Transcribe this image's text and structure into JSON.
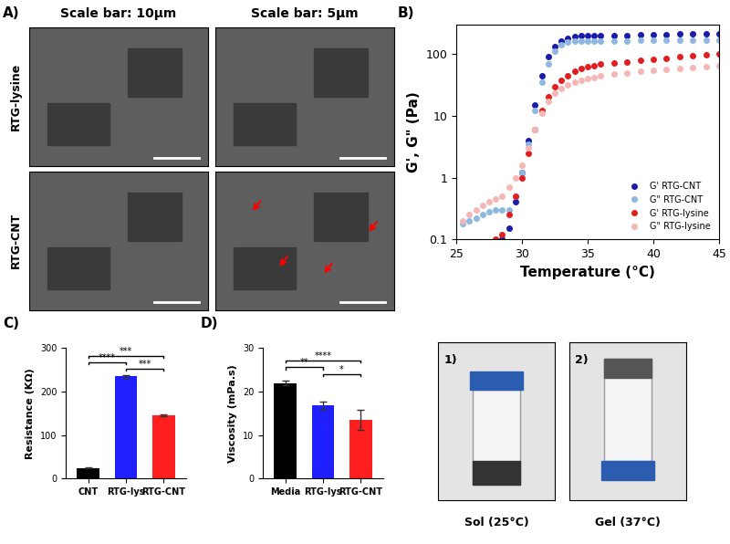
{
  "panel_a": {
    "label": "A)",
    "columns": [
      "Scale bar: 10µm",
      "Scale bar: 5µm"
    ],
    "rows": [
      "RTG-lysine",
      "RTG-CNT"
    ]
  },
  "chart_data": [
    {
      "panel_label": "B)",
      "type": "line",
      "xlabel": "Temperature (°C)",
      "ylabel": "G', G\" (Pa)",
      "log": "y",
      "xlim": [
        25,
        45
      ],
      "xticks": [
        25,
        30,
        35,
        40,
        45
      ],
      "ylim": [
        0.1,
        300
      ],
      "yticks": [
        0.1,
        1,
        10,
        100
      ],
      "legend": "lower right",
      "marker": "circle",
      "line_style": "none",
      "x": [
        25.5,
        26,
        26.5,
        27,
        27.5,
        28,
        28.5,
        29,
        29.5,
        30,
        30.5,
        31,
        31.5,
        32,
        32.5,
        33,
        33.5,
        34,
        34.5,
        35,
        35.5,
        36,
        37,
        38,
        39,
        40,
        41,
        42,
        43,
        44,
        45
      ],
      "series": [
        {
          "name": "G' RTG-CNT",
          "color": "#1c1ca8",
          "values": [
            null,
            null,
            null,
            null,
            null,
            null,
            0.1,
            0.15,
            0.4,
            1.2,
            4,
            15,
            45,
            90,
            130,
            160,
            180,
            190,
            195,
            200,
            200,
            200,
            200,
            200,
            205,
            205,
            205,
            210,
            210,
            210,
            210
          ]
        },
        {
          "name": "G\" RTG-CNT",
          "color": "#8fb8e0",
          "values": [
            0.18,
            0.2,
            0.22,
            0.25,
            0.28,
            0.3,
            0.3,
            0.3,
            0.5,
            1.2,
            3.5,
            12,
            35,
            70,
            110,
            140,
            155,
            160,
            160,
            160,
            160,
            160,
            160,
            160,
            165,
            165,
            165,
            165,
            170,
            170,
            170
          ]
        },
        {
          "name": "G' RTG-lysine",
          "color": "#e02020",
          "values": [
            null,
            null,
            null,
            null,
            null,
            0.1,
            0.12,
            0.25,
            0.5,
            1,
            2.5,
            6,
            12,
            20,
            30,
            38,
            45,
            52,
            58,
            62,
            65,
            68,
            72,
            75,
            78,
            82,
            86,
            90,
            93,
            97,
            100
          ]
        },
        {
          "name": "G\" RTG-lysine",
          "color": "#f4b6b6",
          "values": [
            0.2,
            0.25,
            0.3,
            0.35,
            0.4,
            0.45,
            0.5,
            0.7,
            1,
            1.6,
            3,
            6,
            11,
            17,
            23,
            28,
            32,
            35,
            38,
            40,
            42,
            44,
            47,
            50,
            52,
            55,
            57,
            59,
            61,
            63,
            65
          ]
        }
      ]
    },
    {
      "panel_label": "C)",
      "type": "bar",
      "ylabel": "Resistance (KΩ)",
      "categories": [
        "CNT",
        "RTG-lys",
        "RTG-CNT"
      ],
      "values": [
        25,
        235,
        145
      ],
      "errors": [
        1,
        3,
        2
      ],
      "colors": [
        "#000000",
        "#1f1fff",
        "#ff1f1f"
      ],
      "ylim": [
        0,
        300
      ],
      "yticks": [
        0,
        100,
        200,
        300
      ],
      "significance": [
        {
          "from": "RTG-lys",
          "to": "RTG-CNT",
          "label": "***"
        },
        {
          "from": "CNT",
          "to": "RTG-lys",
          "label": "****"
        },
        {
          "from": "CNT",
          "to": "RTG-CNT",
          "label": "***"
        }
      ]
    },
    {
      "panel_label": "D)",
      "type": "bar",
      "ylabel": "Viscosity (mPa.s)",
      "categories": [
        "Media",
        "RTG-lys",
        "RTG-CNT"
      ],
      "values": [
        22,
        16.8,
        13.5
      ],
      "errors": [
        0.6,
        1.0,
        2.3
      ],
      "colors": [
        "#000000",
        "#1f1fff",
        "#ff1f1f"
      ],
      "ylim": [
        0,
        30
      ],
      "yticks": [
        0,
        10,
        20,
        30
      ],
      "significance": [
        {
          "from": "RTG-lys",
          "to": "RTG-CNT",
          "label": "*"
        },
        {
          "from": "Media",
          "to": "RTG-lys",
          "label": "**"
        },
        {
          "from": "Media",
          "to": "RTG-CNT",
          "label": "****"
        }
      ]
    }
  ],
  "photos": {
    "items": [
      {
        "label": "1)",
        "caption": "Sol (25°C)"
      },
      {
        "label": "2)",
        "caption": "Gel (37°C)"
      }
    ]
  }
}
